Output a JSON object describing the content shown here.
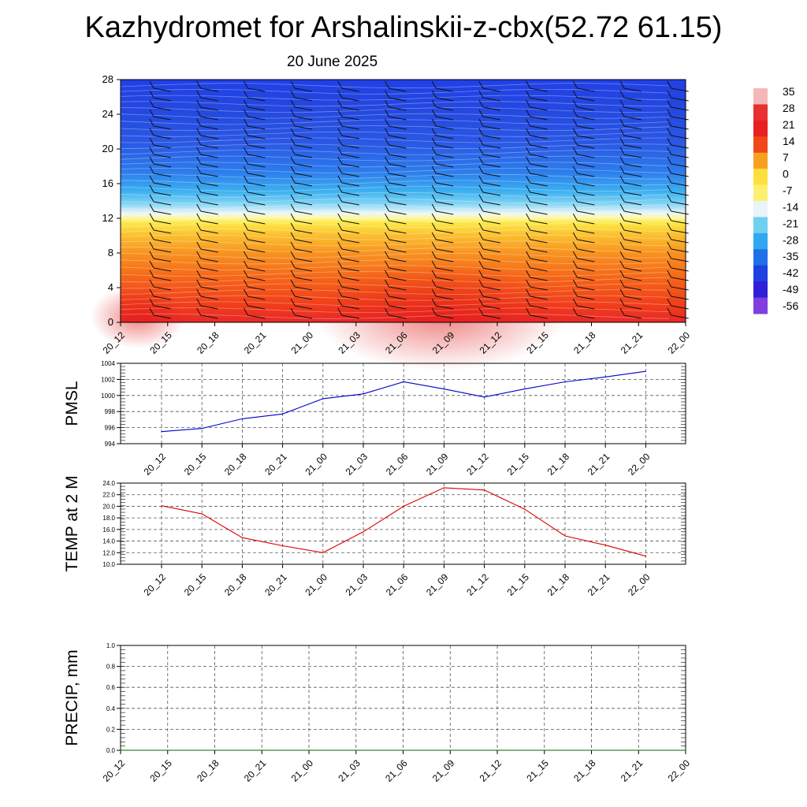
{
  "header": {
    "title": "Kazhydromet for Arshalinskii-z-cbx(52.72 61.15)",
    "subtitle": "20 June 2025"
  },
  "chart_data": [
    {
      "type": "heatmap",
      "name": "vertical-profile",
      "x_ticks": [
        "20_12",
        "20_15",
        "20_18",
        "20_21",
        "21_00",
        "21_03",
        "21_06",
        "21_09",
        "21_12",
        "21_15",
        "21_18",
        "21_21",
        "22_00"
      ],
      "y_ticks": [
        "0",
        "4",
        "8",
        "12",
        "16",
        "20",
        "24",
        "28"
      ],
      "ylim": [
        0,
        28
      ],
      "colorbar": {
        "labels": [
          "35",
          "28",
          "21",
          "14",
          "7",
          "0",
          "-7",
          "-14",
          "-21",
          "-28",
          "-35",
          "-42",
          "-49",
          "-56"
        ],
        "colors": [
          "#f4b8b8",
          "#e83030",
          "#e82020",
          "#f04818",
          "#f8a020",
          "#fde040",
          "#fdf070",
          "#e8f4f8",
          "#70d0f0",
          "#30a8f0",
          "#2070e8",
          "#2040e0",
          "#3020d8",
          "#8040e0"
        ]
      },
      "wind_barbs": true
    },
    {
      "type": "line",
      "name": "pmsl",
      "ylabel": "PMSL",
      "x": [
        "20_12",
        "20_15",
        "20_18",
        "20_21",
        "21_00",
        "21_03",
        "21_06",
        "21_09",
        "21_12",
        "21_15",
        "21_18",
        "21_21",
        "22_00"
      ],
      "values": [
        995.5,
        995.9,
        997.1,
        997.7,
        999.6,
        1000.2,
        1001.7,
        1000.8,
        999.8,
        1000.8,
        1001.7,
        1002.3,
        1003.0
      ],
      "ylim": [
        994,
        1004
      ],
      "y_ticks": [
        "994",
        "996",
        "998",
        "1000",
        "1002",
        "1004"
      ],
      "color": "#0000cc",
      "grid": true
    },
    {
      "type": "line",
      "name": "temp-2m",
      "ylabel": "TEMP at 2 M",
      "x": [
        "20_12",
        "20_15",
        "20_18",
        "20_21",
        "21_00",
        "21_03",
        "21_06",
        "21_09",
        "21_12",
        "21_15",
        "21_18",
        "21_21",
        "22_00"
      ],
      "values": [
        20.1,
        18.7,
        14.6,
        13.2,
        12.0,
        15.6,
        20.0,
        23.2,
        22.8,
        19.5,
        14.9,
        13.3,
        11.4
      ],
      "ylim": [
        10,
        24
      ],
      "y_ticks": [
        "10.0",
        "12.0",
        "14.0",
        "16.0",
        "18.0",
        "20.0",
        "22.0",
        "24.0"
      ],
      "color": "#dd0000",
      "grid": true
    },
    {
      "type": "line",
      "name": "precip",
      "ylabel": "PRECIP, mm",
      "x": [
        "20_12",
        "20_15",
        "20_18",
        "20_21",
        "21_00",
        "21_03",
        "21_06",
        "21_09",
        "21_12",
        "21_15",
        "21_18",
        "21_21",
        "22_00"
      ],
      "values": [
        0,
        0,
        0,
        0,
        0,
        0,
        0,
        0,
        0,
        0,
        0,
        0,
        0
      ],
      "ylim": [
        0,
        1
      ],
      "y_ticks": [
        "0.0",
        "0.2",
        "0.4",
        "0.6",
        "0.8",
        "1.0"
      ],
      "color": "#006600",
      "grid": true
    }
  ]
}
